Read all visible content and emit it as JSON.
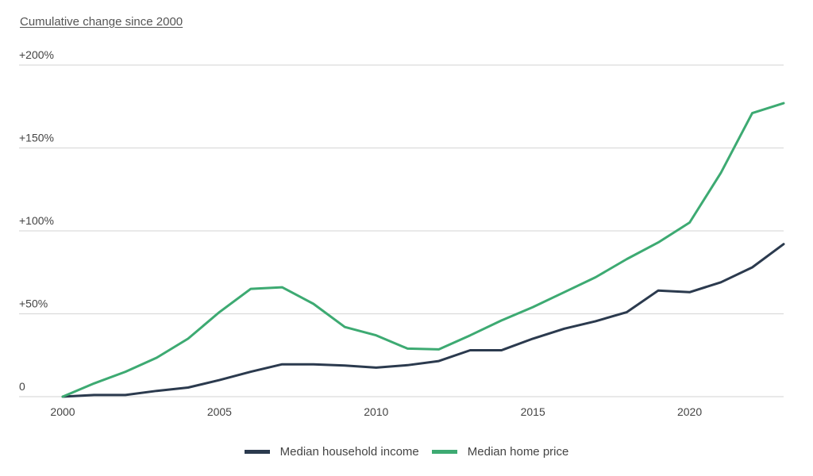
{
  "chart_data": {
    "type": "line",
    "title": "Cumulative change since 2000",
    "xlabel": "",
    "ylabel": "",
    "x": [
      2000,
      2001,
      2002,
      2003,
      2004,
      2005,
      2006,
      2007,
      2008,
      2009,
      2010,
      2011,
      2012,
      2013,
      2014,
      2015,
      2016,
      2017,
      2018,
      2019,
      2020,
      2021,
      2022,
      2023
    ],
    "xlim": [
      2000,
      2023
    ],
    "ylim": [
      0,
      200
    ],
    "grid": true,
    "y_ticks": [
      {
        "value": 0,
        "label": "0"
      },
      {
        "value": 50,
        "label": "+50%"
      },
      {
        "value": 100,
        "label": "+100%"
      },
      {
        "value": 150,
        "label": "+150%"
      },
      {
        "value": 200,
        "label": "+200%"
      }
    ],
    "x_ticks": [
      {
        "value": 2000,
        "label": "2000"
      },
      {
        "value": 2005,
        "label": "2005"
      },
      {
        "value": 2010,
        "label": "2010"
      },
      {
        "value": 2015,
        "label": "2015"
      },
      {
        "value": 2020,
        "label": "2020"
      }
    ],
    "legend_position": "bottom-center",
    "series": [
      {
        "name": "Median household income",
        "color": "#2b3a4e",
        "values": [
          0,
          1,
          1,
          3.5,
          5.5,
          10,
          15,
          19.5,
          19.5,
          18.8,
          17.5,
          19,
          21.5,
          28,
          28,
          35,
          41,
          45.5,
          51,
          64,
          63,
          69,
          78,
          92
        ]
      },
      {
        "name": "Median home price",
        "color": "#3daa72",
        "values": [
          0,
          8,
          15,
          23.5,
          35,
          51,
          65,
          66,
          56,
          42,
          37,
          29,
          28.5,
          37,
          46,
          54,
          63,
          72,
          83,
          93,
          105,
          135,
          171,
          177
        ]
      }
    ]
  }
}
